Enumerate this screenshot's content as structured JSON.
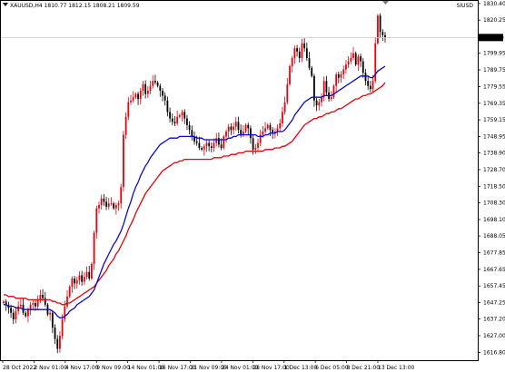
{
  "header": {
    "symbol_info": "XAUUSD,H4  1810.77 1812.15 1808.21 1809.59",
    "corner_label": "SIUSD"
  },
  "current_price_label": "1809.59",
  "colors": {
    "bull": "#e8000b",
    "bear": "#000000",
    "ma_fast": "#0a0ad1",
    "ma_slow": "#e8000b",
    "price_line": "#c8c8c8",
    "frame": "#000000",
    "price_box_bg": "#000000",
    "price_box_text": "#ffffff"
  },
  "icons": {
    "symbol_marker": "triangle-down-icon",
    "shift_marker": "triangle-down-icon"
  },
  "chart_data": {
    "type": "candlestick",
    "symbol": "XAUUSD",
    "timeframe": "H4",
    "ylim": [
      1612,
      1832
    ],
    "y_ticks": [
      "1830.40",
      "1820.25",
      "1799.95",
      "1789.75",
      "1779.55",
      "1769.35",
      "1759.15",
      "1748.95",
      "1738.90",
      "1728.70",
      "1718.50",
      "1708.30",
      "1698.10",
      "1688.05",
      "1677.85",
      "1667.65",
      "1657.45",
      "1647.25",
      "1637.20",
      "1627.00",
      "1616.80"
    ],
    "x_ticks": [
      "28 Oct 2022",
      "2 Nov 01:00",
      "4 Nov 17:00",
      "9 Nov 09:00",
      "14 Nov 01:00",
      "16 Nov 17:00",
      "21 Nov 09:00",
      "24 Nov 01:00",
      "28 Nov 17:00",
      "1 Dec 13:00",
      "6 Dec 05:00",
      "8 Dec 21:00",
      "13 Dec 13:00"
    ],
    "current_price": 1809.59,
    "closes": [
      1648,
      1646,
      1644,
      1641,
      1637,
      1642,
      1645,
      1646,
      1641,
      1639,
      1643,
      1646,
      1647,
      1645,
      1649,
      1652,
      1650,
      1646,
      1640,
      1641,
      1632,
      1625,
      1619,
      1627,
      1637,
      1645,
      1651,
      1657,
      1662,
      1659,
      1661,
      1664,
      1660,
      1663,
      1666,
      1662,
      1671,
      1690,
      1705,
      1707,
      1711,
      1709,
      1706,
      1708,
      1708,
      1705,
      1707,
      1708,
      1718,
      1750,
      1761,
      1770,
      1771,
      1773,
      1775,
      1772,
      1777,
      1781,
      1775,
      1777,
      1780,
      1783,
      1782,
      1780,
      1777,
      1774,
      1771,
      1764,
      1760,
      1758,
      1757,
      1761,
      1762,
      1764,
      1760,
      1756,
      1753,
      1749,
      1746,
      1745,
      1742,
      1741,
      1743,
      1745,
      1743,
      1742,
      1745,
      1748,
      1744,
      1742,
      1749,
      1752,
      1755,
      1753,
      1755,
      1758,
      1753,
      1750,
      1752,
      1756,
      1754,
      1748,
      1741,
      1742,
      1745,
      1750,
      1752,
      1754,
      1756,
      1753,
      1751,
      1752,
      1754,
      1757,
      1764,
      1770,
      1781,
      1792,
      1797,
      1803,
      1801,
      1797,
      1806,
      1803,
      1797,
      1791,
      1786,
      1771,
      1768,
      1770,
      1773,
      1783,
      1776,
      1772,
      1773,
      1780,
      1787,
      1785,
      1787,
      1790,
      1793,
      1795,
      1797,
      1800,
      1793,
      1798,
      1795,
      1788,
      1783,
      1780,
      1778,
      1783,
      1806,
      1823,
      1813,
      1811,
      1809.59
    ],
    "series": [
      {
        "name": "",
        "values": [
          1646,
          1646,
          1645,
          1645,
          1645,
          1644,
          1644,
          1644,
          1643,
          1643,
          1643,
          1643,
          1643,
          1643,
          1643,
          1643,
          1643,
          1643,
          1643,
          1643,
          1642,
          1641,
          1639,
          1638,
          1638,
          1639,
          1640,
          1642,
          1643,
          1644,
          1646,
          1647,
          1648,
          1649,
          1650,
          1651,
          1653,
          1655,
          1659,
          1663,
          1667,
          1671,
          1674,
          1677,
          1680,
          1683,
          1685,
          1688,
          1691,
          1695,
          1700,
          1705,
          1709,
          1714,
          1718,
          1721,
          1725,
          1728,
          1731,
          1733,
          1736,
          1738,
          1740,
          1742,
          1744,
          1745,
          1746,
          1747,
          1748,
          1748,
          1748,
          1748,
          1749,
          1749,
          1749,
          1749,
          1749,
          1749,
          1749,
          1748,
          1748,
          1748,
          1747,
          1747,
          1747,
          1747,
          1747,
          1747,
          1747,
          1747,
          1747,
          1747,
          1748,
          1748,
          1749,
          1749,
          1750,
          1750,
          1750,
          1750,
          1750,
          1750,
          1750,
          1750,
          1749,
          1749,
          1749,
          1750,
          1750,
          1751,
          1751,
          1751,
          1752,
          1752,
          1752,
          1753,
          1755,
          1757,
          1759,
          1762,
          1764,
          1766,
          1768,
          1770,
          1771,
          1772,
          1773,
          1773,
          1773,
          1773,
          1773,
          1774,
          1774,
          1774,
          1774,
          1775,
          1776,
          1777,
          1778,
          1779,
          1780,
          1781,
          1782,
          1783,
          1784,
          1785,
          1786,
          1786,
          1786,
          1786,
          1785,
          1785,
          1787,
          1789,
          1790,
          1791,
          1792
        ]
      },
      {
        "name": "",
        "values": [
          1652,
          1652,
          1651,
          1651,
          1651,
          1650,
          1650,
          1650,
          1650,
          1650,
          1649,
          1649,
          1649,
          1649,
          1649,
          1649,
          1649,
          1649,
          1649,
          1649,
          1648,
          1648,
          1647,
          1647,
          1646,
          1646,
          1647,
          1647,
          1648,
          1649,
          1650,
          1651,
          1652,
          1653,
          1654,
          1655,
          1656,
          1657,
          1659,
          1661,
          1663,
          1665,
          1667,
          1670,
          1672,
          1674,
          1677,
          1679,
          1682,
          1685,
          1688,
          1692,
          1695,
          1698,
          1702,
          1705,
          1708,
          1711,
          1714,
          1716,
          1718,
          1720,
          1722,
          1724,
          1726,
          1728,
          1729,
          1730,
          1731,
          1732,
          1733,
          1733,
          1734,
          1734,
          1735,
          1735,
          1735,
          1735,
          1735,
          1735,
          1735,
          1735,
          1735,
          1735,
          1735,
          1735,
          1736,
          1736,
          1736,
          1736,
          1737,
          1737,
          1737,
          1738,
          1738,
          1738,
          1739,
          1739,
          1739,
          1740,
          1740,
          1740,
          1740,
          1740,
          1740,
          1740,
          1740,
          1741,
          1741,
          1741,
          1741,
          1742,
          1742,
          1742,
          1743,
          1743,
          1744,
          1745,
          1746,
          1748,
          1750,
          1752,
          1754,
          1756,
          1757,
          1758,
          1759,
          1760,
          1760,
          1761,
          1761,
          1762,
          1763,
          1763,
          1764,
          1764,
          1765,
          1766,
          1766,
          1767,
          1768,
          1769,
          1770,
          1771,
          1772,
          1772,
          1773,
          1774,
          1774,
          1775,
          1775,
          1776,
          1777,
          1778,
          1779,
          1780,
          1782
        ]
      }
    ]
  }
}
